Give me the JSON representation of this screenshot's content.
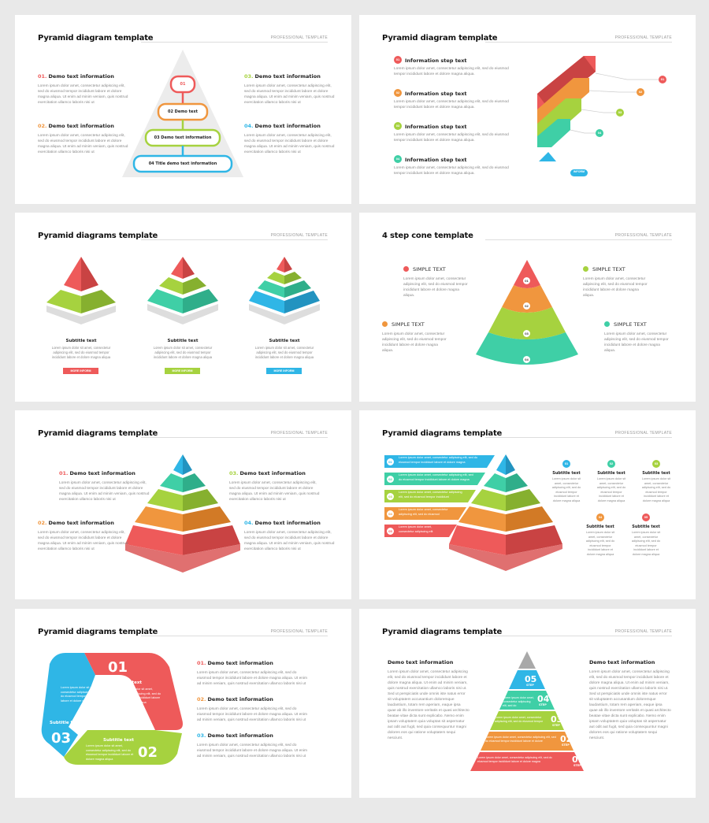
{
  "common": {
    "tag": "PROFESSIONAL TEMPLATE",
    "lorem4": "Lorem ipsum dolor amet, consectetur adipiscing elit, sed do eiusmod tempor incididunt labore et dolore magna aliqua. Ut enim ad minim veniam, quis nostrud exercitation ullamco laboris nisi ut",
    "lorem_short": "Lorem ipsum dolor amet, consectetur adipiscing elit, sed do eiusmod tempor incididunt labore et dolore magna aliqua.",
    "lorem_sub": "Lorem ipsum dolor sit amet, consectetur adipiscing elit, sed do eiusmod tempor incididunt labore et dolore magna aliqua"
  },
  "colors": {
    "red": "#ee5a5a",
    "orange": "#f0963e",
    "yellowgreen": "#a6d23f",
    "green": "#7fd04b",
    "teal": "#3fcfa6",
    "blue": "#2fb6e6",
    "gray": "#a9a9a9"
  },
  "slide1": {
    "title": "Pyramid diagram template",
    "items": [
      {
        "num": "01.",
        "label": "Demo text information",
        "color": "#ee5a5a"
      },
      {
        "num": "02.",
        "label": "Demo text information",
        "color": "#f0963e"
      },
      {
        "num": "03.",
        "label": "Demo text information",
        "color": "#a6d23f"
      },
      {
        "num": "04.",
        "label": "Demo text information",
        "color": "#2fb6e6"
      }
    ],
    "levels": [
      "01",
      "02 Demo text",
      "03 Demo text information",
      "04 Title demo text information"
    ]
  },
  "slide2": {
    "title": "Pyramid diagram template",
    "steps": [
      {
        "num": "01",
        "label": "Information step text"
      },
      {
        "num": "02",
        "label": "Information step text"
      },
      {
        "num": "03",
        "label": "Information step text"
      },
      {
        "num": "04",
        "label": "Information step text"
      }
    ],
    "markers": [
      "01",
      "02",
      "03",
      "04",
      "05"
    ],
    "pill": "INFORM"
  },
  "slide3": {
    "title": "Pyramid diagrams template",
    "cards": [
      {
        "subtitle": "Subtitle text",
        "text": "Lorem ipsum dolor sit amet, consectetur adipiscing elit, sed do eiusmod tempor incididunt labore et dolore magna aliqua",
        "button": "MORE INFORM"
      },
      {
        "subtitle": "Subtitle text",
        "text": "Lorem ipsum dolor sit amet, consectetur adipiscing elit, sed do eiusmod tempor incididunt labore et dolore magna aliqua",
        "button": "MORE INFORM"
      },
      {
        "subtitle": "Subtitle text",
        "text": "Lorem ipsum dolor sit amet, consectetur adipiscing elit, sed do eiusmod tempor incididunt labore et dolore magna aliqua",
        "button": "MORE INFORM"
      }
    ]
  },
  "slide4": {
    "title": "4 step cone template",
    "items": [
      "SIMPLE TEXT",
      "SIMPLE TEXT",
      "SIMPLE TEXT",
      "SIMPLE TEXT"
    ],
    "levels": [
      "01",
      "02",
      "03",
      "04"
    ]
  },
  "slide5": {
    "title": "Pyramid diagrams template",
    "items": [
      {
        "num": "01.",
        "label": "Demo text information"
      },
      {
        "num": "02.",
        "label": "Demo text information"
      },
      {
        "num": "03.",
        "label": "Demo text information"
      },
      {
        "num": "04.",
        "label": "Demo text information"
      }
    ]
  },
  "slide6": {
    "title": "Pyramid diagrams template",
    "bars": [
      {
        "num": "01",
        "text": "Lorem ipsum dolor amet, consectetur adipiscing elit, sed do eiusmod tempor incididunt labore et dolore magna"
      },
      {
        "num": "02",
        "text": "Lorem ipsum dolor amet, consectetur adipiscing elit, sed do eiusmod tempor incididunt labore et dolore magna"
      },
      {
        "num": "03",
        "text": "Lorem ipsum dolor amet, consectetur adipiscing elit, sed do eiusmod tempor incididunt"
      },
      {
        "num": "04",
        "text": "Lorem ipsum dolor amet, consectetur adipiscing elit, sed do eiusmod"
      },
      {
        "num": "05",
        "text": "Lorem ipsum dolor amet, consectetur adipiscing elit"
      }
    ],
    "subs": [
      {
        "num": "01",
        "title": "Subtitle text"
      },
      {
        "num": "02",
        "title": "Subtitle text"
      },
      {
        "num": "03",
        "title": "Subtitle text"
      },
      {
        "num": "04",
        "title": "Subtitle text"
      },
      {
        "num": "05",
        "title": "Subtitle text"
      }
    ],
    "subtext": "Lorem ipsum dolor sit amet, consectetur adipiscing elit, sed do eiusmod tempor incididunt labore et dolore magna aliqua"
  },
  "slide7": {
    "title": "Pyramid diagrams template",
    "segments": [
      {
        "num": "01",
        "subtitle": "Subtitle text",
        "text": "Lorem ipsum dolor sit amet, consectetur adipiscing elit, sed do eiusmod tempor incididunt labore et dolore magna aliqua"
      },
      {
        "num": "02",
        "subtitle": "Subtitle text",
        "text": "Lorem ipsum dolor sit amet, consectetur adipiscing elit, sed do eiusmod tempor incididunt labore et dolore magna aliqua"
      },
      {
        "num": "03",
        "subtitle": "Subtitle text",
        "text": "Lorem ipsum dolor sit amet, consectetur adipiscing elit, sed do eiusmod tempor incididunt labore et dolore magna aliqua"
      }
    ],
    "items": [
      {
        "num": "01.",
        "label": "Demo text information"
      },
      {
        "num": "02.",
        "label": "Demo text information"
      },
      {
        "num": "03.",
        "label": "Demo text information"
      }
    ],
    "itemtext": "Lorem ipsum dolor amet, consectetur adipiscing elit, sed do eiusmod tempor incididunt labore et dolore magna aliqua. Ut enim ad minim veniam, quis nostrud exercitation ullamco laboris nisi ut"
  },
  "slide8": {
    "title": "Pyramid diagrams template",
    "left_title": "Demo text information",
    "right_title": "Demo text information",
    "side_text": "Lorem ipsum dolor amet, consectetur adipiscing elit, sed do eiusmod tempor incididunt labore et dolore magna aliqua. Ut enim ad minim veniam, quis nostrud exercitation ullamco laboris nisi ut. Sed ut perspiciatis unde omnis iste natus error sit voluptatem accusantium doloremque laudantium, totam rem aperiam, eaque ipsa quae ab illo inventore veritatis et quasi architecto beatae vitae dicta sunt explicabo. Nemo enim ipsam voluptatem quia voluptas sit aspernatur aut odit aut fugit, sed quia consequuntur magni dolores eos qui ratione voluptatem sequi nesciunt.",
    "steps": [
      {
        "num": "05",
        "word": "STEP",
        "text": ""
      },
      {
        "num": "04",
        "word": "STEP",
        "text": "Lorem ipsum dolor amet, consectetur adipiscing elit, sed do"
      },
      {
        "num": "03",
        "word": "STEP",
        "text": "Lorem ipsum dolor amet, consectetur adipiscing elit, sed do eiusmod tempor"
      },
      {
        "num": "02",
        "word": "STEP",
        "text": "Lorem ipsum dolor amet, consectetur adipiscing elit, sed do eiusmod tempor incididunt labore et dolore"
      },
      {
        "num": "01",
        "word": "STEP",
        "text": "Lorem ipsum dolor amet, consectetur adipiscing elit, sed do eiusmod tempor incididunt labore et dolore magna"
      }
    ]
  }
}
